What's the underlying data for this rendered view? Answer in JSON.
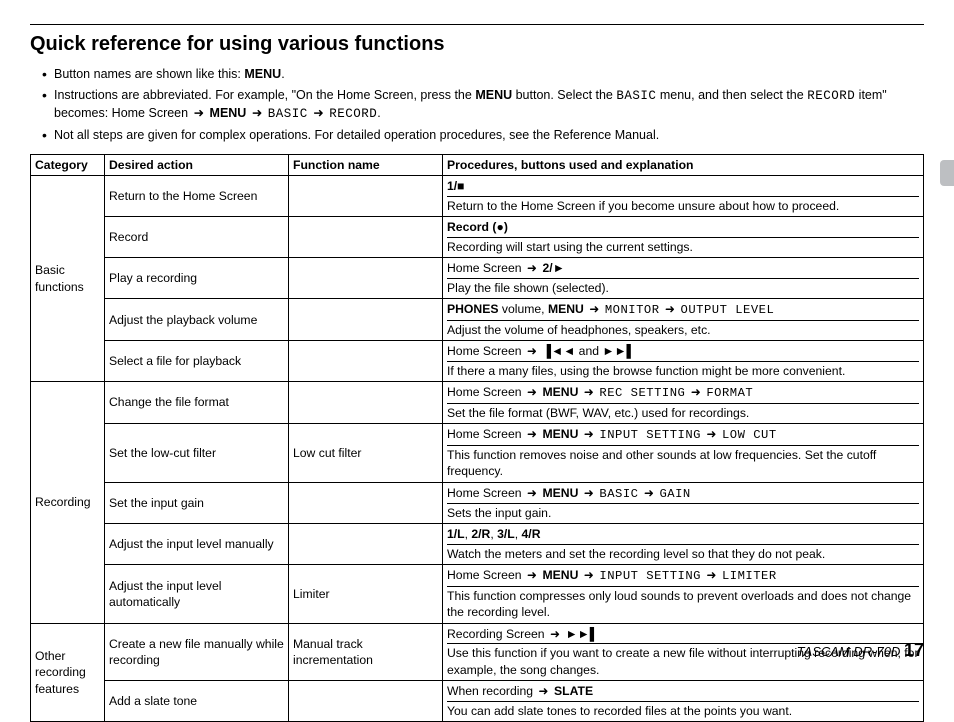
{
  "title": "Quick reference for using various functions",
  "notes": {
    "n1a": "Button names are shown like this: ",
    "n1b": "MENU",
    "n1c": ".",
    "n2a": "Instructions are abbreviated. For example, \"On the Home Screen, press the ",
    "n2b": "MENU",
    "n2c": " button. Select the ",
    "n2d": "BASIC",
    "n2e": " menu, and then select the ",
    "n2f": "RECORD",
    "n2g": " item\" becomes: Home Screen ",
    "n2h": "MENU",
    "n2i": "BASIC",
    "n2j": "RECORD",
    "n2k": ".",
    "n3": "Not all steps are given for complex operations. For detailed operation procedures, see the Reference Manual."
  },
  "headers": {
    "cat": "Category",
    "act": "Desired action",
    "fn": "Function name",
    "proc": "Procedures, buttons used and explanation"
  },
  "cat": {
    "basic": "Basic functions",
    "rec": "Recording",
    "other": "Other recording features"
  },
  "rows": {
    "r1": {
      "act": "Return to the Home Screen",
      "fn": "",
      "p1a": "1/",
      "p1b": "■",
      "p2": "Return to the Home Screen if you become unsure about how to proceed."
    },
    "r2": {
      "act": "Record",
      "fn": "",
      "p1a": "Record (",
      "p1b": "●",
      "p1c": ")",
      "p2": "Recording will start using the current settings."
    },
    "r3": {
      "act": "Play a recording",
      "fn": "",
      "p1a": "Home Screen ",
      "p1b": "2/",
      "p1c": "►",
      "p2": "Play the file shown (selected)."
    },
    "r4": {
      "act": "Adjust the playback volume",
      "fn": "",
      "p1a": "PHONES",
      "p1b": " volume, ",
      "p1c": "MENU",
      "p1d": "MONITOR",
      "p1e": "OUTPUT LEVEL",
      "p2": "Adjust the volume of headphones, speakers, etc."
    },
    "r5": {
      "act": "Select a file for playback",
      "fn": "",
      "p1a": "Home Screen ",
      "p1b": "▐◄◄",
      "p1c": " and ",
      "p1d": "►►▌",
      "p2": "If there a many files, using the browse function might be more convenient."
    },
    "r6": {
      "act": "Change the file format",
      "fn": "",
      "p1a": "Home Screen ",
      "p1b": "MENU",
      "p1c": "REC SETTING",
      "p1d": "FORMAT",
      "p2": "Set the file format (BWF, WAV, etc.) used for recordings."
    },
    "r7": {
      "act": "Set the low-cut filter",
      "fn": "Low cut filter",
      "p1a": "Home Screen ",
      "p1b": "MENU",
      "p1c": "INPUT SETTING",
      "p1d": "LOW CUT",
      "p2": "This function removes noise and other sounds at low frequencies. Set the cutoff frequency."
    },
    "r8": {
      "act": "Set the input gain",
      "fn": "",
      "p1a": "Home Screen ",
      "p1b": "MENU",
      "p1c": "BASIC",
      "p1d": "GAIN",
      "p2": "Sets the input gain."
    },
    "r9": {
      "act": "Adjust the input level manually",
      "fn": "",
      "p1a": "1/L",
      "p1b": ", ",
      "p1c": "2/R",
      "p1d": ", ",
      "p1e": "3/L",
      "p1f": ", ",
      "p1g": "4/R",
      "p2": "Watch the meters and set the recording level so that they do not peak."
    },
    "r10": {
      "act": "Adjust the input level automatically",
      "fn": "Limiter",
      "p1a": "Home Screen ",
      "p1b": "MENU",
      "p1c": "INPUT SETTING",
      "p1d": "LIMITER",
      "p2": "This function compresses only loud sounds to prevent overloads and does not change the recording level."
    },
    "r11": {
      "act": "Create a new file manually while recording",
      "fn": "Manual track incrementation",
      "p1a": "Recording Screen ",
      "p1b": "►►▌",
      "p2": "Use this function if you want to create a new file without interrupting recording when, for example, the song changes."
    },
    "r12": {
      "act": "Add a slate tone",
      "fn": "",
      "p1a": "When recording ",
      "p1b": "SLATE",
      "p2": "You can add slate tones to recorded files at the points you want."
    }
  },
  "footer": {
    "model": "TASCAM DR-70D",
    "page": "17"
  },
  "glyphs": {
    "arrow": "➜"
  }
}
